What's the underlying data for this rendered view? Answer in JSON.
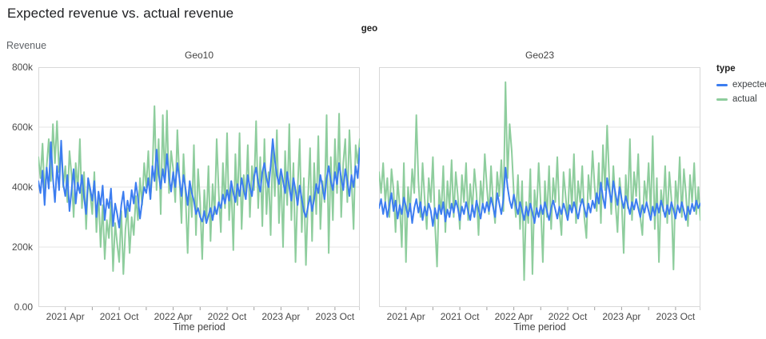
{
  "header": {
    "title": "Expected revenue vs. actual revenue"
  },
  "chart_data": {
    "type": "line",
    "title": "Expected revenue vs. actual revenue",
    "facet_field_label": "geo",
    "xlabel": "Time period",
    "ylabel": "Revenue",
    "unit": "revenue values are in thousands (k)",
    "ylim_k": [
      0,
      800
    ],
    "y_ticks": [
      {
        "label": "800k",
        "value_k": 800
      },
      {
        "label": "600k",
        "value_k": 600
      },
      {
        "label": "400k",
        "value_k": 400
      },
      {
        "label": "200k",
        "value_k": 200
      },
      {
        "label": "0.00",
        "value_k": 0
      }
    ],
    "y_grid_values_k": [
      200,
      400,
      600
    ],
    "grid": "horizontal only",
    "x": {
      "start": "2021-01",
      "end": "2023-12",
      "interval": "weekly",
      "n_points": 156
    },
    "x_ticks_major": [
      {
        "label": "2021 Apr",
        "week": 13
      },
      {
        "label": "2021 Oct",
        "week": 39
      },
      {
        "label": "2022 Apr",
        "week": 65
      },
      {
        "label": "2022 Oct",
        "week": 91
      },
      {
        "label": "2023 Apr",
        "week": 117
      },
      {
        "label": "2023 Oct",
        "week": 143
      }
    ],
    "x_ticks_minor_weeks": [
      26,
      52,
      78,
      104,
      130,
      155
    ],
    "legend": {
      "title": "type",
      "position": "top-right",
      "items": [
        {
          "label": "expected",
          "color": "#3c7df0"
        },
        {
          "label": "actual",
          "color": "#8ecd9d"
        }
      ]
    },
    "colors": {
      "expected_line": "#3c7df0",
      "actual_line": "#8ecd9d",
      "grid": "#e5e5e5",
      "plot_border": "#d8d8d8",
      "tick": "#9e9e9e",
      "axis_text": "#4a4a4a"
    },
    "facets": [
      {
        "title": "Geo10",
        "series": [
          {
            "name": "expected",
            "values_k": [
              420,
              380,
              455,
              340,
              465,
              395,
              550,
              430,
              350,
              470,
              390,
              555,
              410,
              370,
              440,
              320,
              390,
              460,
              345,
              415,
              380,
              440,
              365,
              310,
              430,
              395,
              355,
              420,
              300,
              385,
              340,
              405,
              290,
              360,
              330,
              395,
              270,
              345,
              310,
              265,
              340,
              385,
              300,
              355,
              320,
              390,
              345,
              415,
              365,
              295,
              350,
              400,
              380,
              430,
              360,
              470,
              420,
              525,
              445,
              395,
              460,
              415,
              510,
              435,
              385,
              450,
              400,
              480,
              430,
              370,
              440,
              395,
              340,
              420,
              380,
              355,
              310,
              330,
              300,
              285,
              320,
              280,
              305,
              330,
              290,
              335,
              310,
              350,
              330,
              375,
              345,
              390,
              355,
              420,
              380,
              350,
              410,
              370,
              430,
              390,
              360,
              440,
              400,
              370,
              435,
              465,
              415,
              385,
              450,
              480,
              430,
              400,
              470,
              560,
              490,
              440,
              410,
              460,
              420,
              380,
              450,
              400,
              355,
              430,
              390,
              340,
              405,
              360,
              320,
              300,
              335,
              370,
              320,
              360,
              410,
              380,
              440,
              400,
              360,
              430,
              470,
              420,
              390,
              450,
              410,
              480,
              430,
              390,
              460,
              420,
              370,
              440,
              400,
              470,
              430,
              530
            ]
          },
          {
            "name": "actual",
            "values_k": [
              500,
              430,
              545,
              380,
              470,
              560,
              420,
              610,
              480,
              620,
              450,
              540,
              400,
              470,
              350,
              520,
              440,
              300,
              480,
              390,
              560,
              330,
              450,
              260,
              420,
              380,
              310,
              450,
              250,
              380,
              200,
              340,
              160,
              290,
              230,
              350,
              120,
              280,
              210,
              150,
              320,
              110,
              260,
              330,
              180,
              300,
              240,
              370,
              290,
              430,
              340,
              480,
              400,
              520,
              360,
              450,
              670,
              390,
              560,
              310,
              640,
              420,
              655,
              380,
              520,
              460,
              350,
              590,
              430,
              280,
              510,
              370,
              180,
              420,
              300,
              540,
              240,
              460,
              350,
              160,
              390,
              280,
              470,
              220,
              410,
              310,
              560,
              380,
              250,
              480,
              330,
              580,
              290,
              420,
              190,
              510,
              340,
              580,
              260,
              440,
              360,
              540,
              300,
              470,
              390,
              620,
              330,
              500,
              270,
              560,
              310,
              450,
              240,
              530,
              370,
              590,
              280,
              450,
              200,
              520,
              340,
              610,
              290,
              480,
              150,
              390,
              560,
              250,
              430,
              140,
              360,
              530,
              220,
              480,
              310,
              570,
              260,
              420,
              350,
              640,
              180,
              500,
              290,
              560,
              380,
              645,
              300,
              480,
              560,
              350,
              590,
              430,
              260,
              540,
              480,
              560
            ]
          }
        ]
      },
      {
        "title": "Geo23",
        "series": [
          {
            "name": "expected",
            "values_k": [
              330,
              360,
              310,
              350,
              300,
              340,
              380,
              320,
              355,
              295,
              340,
              310,
              365,
              335,
              300,
              345,
              280,
              330,
              360,
              315,
              350,
              290,
              335,
              305,
              345,
              320,
              270,
              330,
              295,
              340,
              310,
              350,
              285,
              325,
              300,
              345,
              315,
              355,
              330,
              290,
              335,
              310,
              350,
              320,
              290,
              340,
              300,
              355,
              325,
              295,
              345,
              315,
              350,
              320,
              365,
              335,
              300,
              380,
              345,
              310,
              360,
              465,
              400,
              355,
              330,
              375,
              340,
              310,
              350,
              320,
              290,
              335,
              305,
              345,
              315,
              280,
              330,
              300,
              340,
              310,
              350,
              320,
              290,
              330,
              355,
              325,
              295,
              335,
              310,
              345,
              320,
              290,
              340,
              315,
              350,
              325,
              295,
              335,
              360,
              330,
              300,
              345,
              315,
              355,
              330,
              380,
              345,
              415,
              365,
              330,
              430,
              390,
              350,
              420,
              380,
              340,
              400,
              360,
              330,
              370,
              340,
              310,
              350,
              325,
              360,
              330,
              300,
              340,
              315,
              350,
              320,
              290,
              335,
              305,
              345,
              315,
              355,
              330,
              300,
              340,
              310,
              350,
              325,
              295,
              340,
              315,
              350,
              320,
              290,
              335,
              310,
              345,
              320,
              355,
              330,
              345
            ]
          },
          {
            "name": "actual",
            "values_k": [
              450,
              380,
              480,
              350,
              430,
              300,
              460,
              390,
              250,
              420,
              340,
              200,
              480,
              150,
              400,
              320,
              460,
              380,
              640,
              420,
              300,
              480,
              360,
              260,
              430,
              350,
              500,
              280,
              135,
              390,
              310,
              470,
              250,
              420,
              330,
              490,
              300,
              450,
              370,
              260,
              440,
              350,
              480,
              290,
              410,
              320,
              460,
              380,
              240,
              420,
              340,
              510,
              400,
              310,
              470,
              350,
              280,
              450,
              370,
              490,
              320,
              750,
              430,
              610,
              520,
              380,
              300,
              440,
              260,
              420,
              90,
              350,
              280,
              460,
              110,
              390,
              310,
              480,
              340,
              150,
              420,
              300,
              470,
              260,
              430,
              350,
              500,
              320,
              240,
              450,
              370,
              290,
              460,
              330,
              510,
              280,
              420,
              350,
              470,
              300,
              230,
              440,
              360,
              520,
              400,
              320,
              480,
              280,
              540,
              390,
              605,
              430,
              310,
              470,
              350,
              250,
              430,
              360,
              180,
              440,
              330,
              560,
              290,
              450,
              370,
              510,
              300,
              240,
              420,
              350,
              480,
              310,
              570,
              260,
              430,
              150,
              390,
              320,
              470,
              280,
              450,
              360,
              125,
              420,
              340,
              500,
              300,
              460,
              380,
              270,
              440,
              350,
              480,
              310,
              400,
              290
            ]
          }
        ]
      }
    ]
  }
}
